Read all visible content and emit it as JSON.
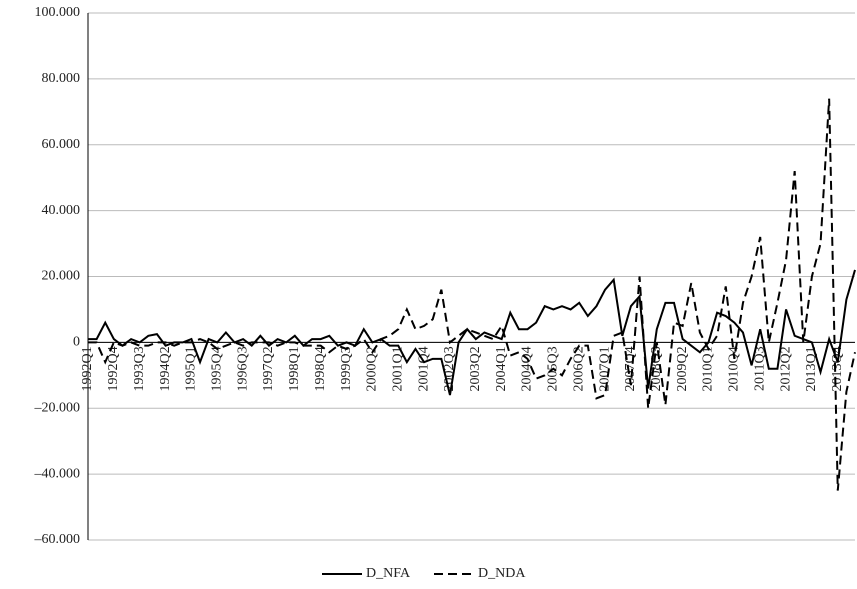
{
  "chart_data": {
    "type": "line",
    "categories": [
      "1992Q1",
      null,
      null,
      "1992Q4",
      null,
      null,
      "1993Q3",
      null,
      null,
      "1994Q2",
      null,
      null,
      "1995Q1",
      null,
      null,
      "1995Q4",
      null,
      null,
      "1996Q3",
      null,
      null,
      "1997Q2",
      null,
      null,
      "1998Q1",
      null,
      null,
      "1998Q4",
      null,
      null,
      "1999Q3",
      null,
      null,
      "2000Q2",
      null,
      null,
      "2001Q1",
      null,
      null,
      "2001Q4",
      null,
      null,
      "2002Q3",
      null,
      null,
      "2003Q2",
      null,
      null,
      "2004Q1",
      null,
      null,
      "2004Q4",
      null,
      null,
      "2005Q3",
      null,
      null,
      "2006Q2",
      null,
      null,
      "2007Q1",
      null,
      null,
      "2007Q4",
      null,
      null,
      "2008Q3",
      null,
      null,
      "2009Q2",
      null,
      null,
      "2010Q1",
      null,
      null,
      "2010Q4",
      null,
      null,
      "2011Q3",
      null,
      null,
      "2012Q2",
      null,
      null,
      "2013Q1",
      null,
      null,
      "2013Q4",
      null,
      null
    ],
    "series": [
      {
        "name": "D_NFA",
        "color": "#000000",
        "line_style": "solid",
        "values": [
          1,
          1,
          6,
          1,
          -1,
          1,
          0,
          2,
          2.5,
          -1,
          0,
          0,
          1,
          -6,
          1,
          0,
          3,
          0,
          1,
          -1,
          2,
          -1,
          1,
          0,
          2,
          -1,
          1,
          1,
          2,
          -1,
          0,
          -1,
          4,
          0,
          1,
          -1,
          -1,
          -6,
          -2,
          -6,
          -5,
          -5,
          -16,
          0,
          4,
          1,
          3,
          2,
          1,
          9,
          4,
          4,
          6,
          11,
          10,
          11,
          10,
          12,
          8,
          11,
          16,
          19,
          2,
          11,
          14,
          -14,
          4,
          12,
          12,
          1,
          -1,
          -3,
          0,
          9,
          8,
          6,
          3,
          -7,
          4,
          -8,
          -8,
          10,
          2,
          1,
          0,
          -9,
          1,
          -6,
          13,
          22
        ]
      },
      {
        "name": "D_NDA",
        "color": "#000000",
        "line_style": "dashed",
        "values": [
          0,
          0,
          -6,
          0,
          -1,
          0,
          -1,
          -1,
          0,
          0,
          -1,
          0,
          0,
          1,
          0,
          -2,
          -1,
          0,
          -1,
          0,
          0,
          0,
          -1,
          0,
          0,
          -1,
          -1,
          -1,
          -3,
          -1,
          -2,
          -1,
          1,
          -3,
          1,
          2,
          4,
          10,
          4,
          5,
          7,
          16,
          0,
          2,
          4,
          3,
          2,
          1,
          5,
          -4,
          -3,
          -5,
          -11,
          -10,
          -8,
          -10,
          -5,
          -1,
          -1,
          -17,
          -16,
          2,
          3,
          -13,
          20,
          -20,
          0,
          -19,
          6,
          5,
          18,
          3,
          -2,
          2,
          17,
          -5,
          12,
          20,
          32,
          0,
          12,
          25,
          52,
          0,
          20,
          30,
          74,
          -45,
          -15,
          -3
        ]
      }
    ],
    "ylim": [
      -60,
      100
    ],
    "yticks": [
      {
        "value": -60,
        "label": "–60.000"
      },
      {
        "value": -40,
        "label": "–40.000"
      },
      {
        "value": -20,
        "label": "–20.000"
      },
      {
        "value": 0,
        "label": "0"
      },
      {
        "value": 20,
        "label": "20.000"
      },
      {
        "value": 40,
        "label": "40.000"
      },
      {
        "value": 60,
        "label": "60.000"
      },
      {
        "value": 80,
        "label": "80.000"
      },
      {
        "value": 100,
        "label": "100.000"
      }
    ],
    "grid": true,
    "legend": "bottom"
  }
}
